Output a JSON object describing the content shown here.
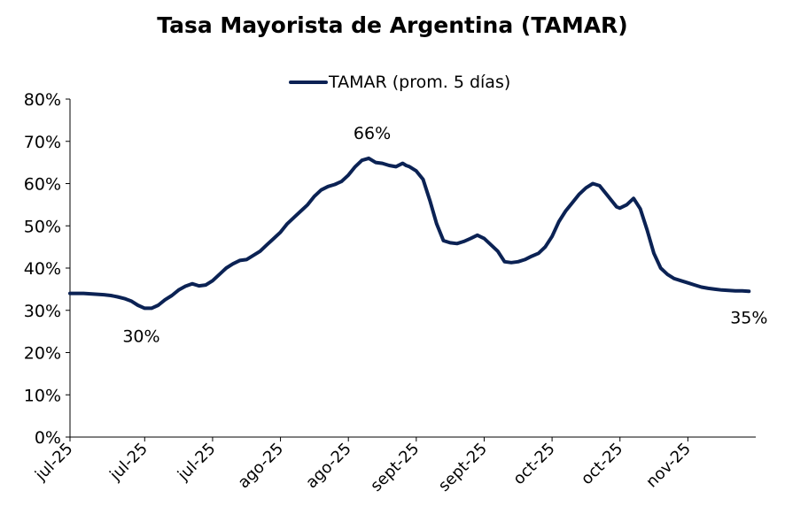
{
  "chart_data": {
    "type": "line",
    "title": "Tasa Mayorista de Argentina (TAMAR)",
    "xlabel": "",
    "ylabel": "",
    "ylim": [
      0,
      80
    ],
    "y_ticks": [
      "0%",
      "10%",
      "20%",
      "30%",
      "40%",
      "50%",
      "60%",
      "70%",
      "80%"
    ],
    "y_tick_values": [
      0,
      10,
      20,
      30,
      40,
      50,
      60,
      70,
      80
    ],
    "x_tick_labels": [
      "jul-25",
      "jul-25",
      "jul-25",
      "ago-25",
      "ago-25",
      "sept-25",
      "sept-25",
      "oct-25",
      "oct-25",
      "nov-25"
    ],
    "x_tick_positions": [
      0,
      11,
      21,
      31,
      41,
      51,
      61,
      71,
      81,
      91
    ],
    "xlim": [
      0,
      101
    ],
    "grid": false,
    "legend_position": "top-center",
    "color": "#0b2254",
    "series": [
      {
        "name": "TAMAR (prom. 5 días)",
        "x": [
          0,
          2,
          4,
          5,
          6,
          7,
          8,
          9,
          10,
          11,
          12,
          13,
          14,
          15,
          16,
          17,
          18,
          19,
          20,
          21,
          22,
          23,
          24,
          25,
          26,
          27,
          28,
          29,
          30,
          31,
          32,
          33,
          34,
          35,
          36,
          37,
          38,
          39,
          40,
          41,
          42,
          43,
          44,
          45,
          46,
          47,
          48,
          49,
          49.5,
          50,
          51,
          52,
          53,
          54,
          55,
          56,
          57,
          58,
          59,
          60,
          61,
          62,
          63,
          64,
          65,
          66,
          67,
          68,
          69,
          70,
          71,
          72,
          73,
          74,
          75,
          76,
          77,
          78,
          79,
          80,
          80.5,
          81,
          82,
          83,
          84,
          85,
          86,
          87,
          88,
          89,
          90,
          91,
          92,
          93,
          94,
          95,
          96,
          97,
          98,
          99,
          100
        ],
        "values": [
          34,
          34,
          33.8,
          33.7,
          33.5,
          33.2,
          32.8,
          32.2,
          31.2,
          30.5,
          30.5,
          31.2,
          32.5,
          33.5,
          34.8,
          35.7,
          36.3,
          35.8,
          36,
          37,
          38.5,
          40,
          41,
          41.8,
          42,
          43,
          44,
          45.5,
          47,
          48.5,
          50.5,
          52,
          53.5,
          55,
          57,
          58.5,
          59.3,
          59.8,
          60.5,
          62,
          64,
          65.5,
          66,
          65,
          64.8,
          64.3,
          64,
          64.8,
          64.3,
          64,
          63,
          61,
          56,
          50.5,
          46.5,
          46,
          45.8,
          46.3,
          47,
          47.8,
          47,
          45.5,
          44,
          41.5,
          41.3,
          41.5,
          42,
          42.8,
          43.5,
          45,
          47.5,
          51,
          53.5,
          55.5,
          57.5,
          59,
          60,
          59.5,
          57.5,
          55.5,
          54.5,
          54.2,
          55,
          56.5,
          54,
          49,
          43.5,
          40,
          38.5,
          37.5,
          37,
          36.5,
          36,
          35.5,
          35.2,
          35,
          34.8,
          34.7,
          34.6,
          34.6,
          34.5
        ]
      }
    ],
    "annotations": [
      {
        "text": "30%",
        "x": 10.5,
        "y": 30.5
      },
      {
        "text": "66%",
        "x": 44.5,
        "y": 66
      },
      {
        "text": "35%",
        "x": 100,
        "y": 34.5
      }
    ]
  }
}
